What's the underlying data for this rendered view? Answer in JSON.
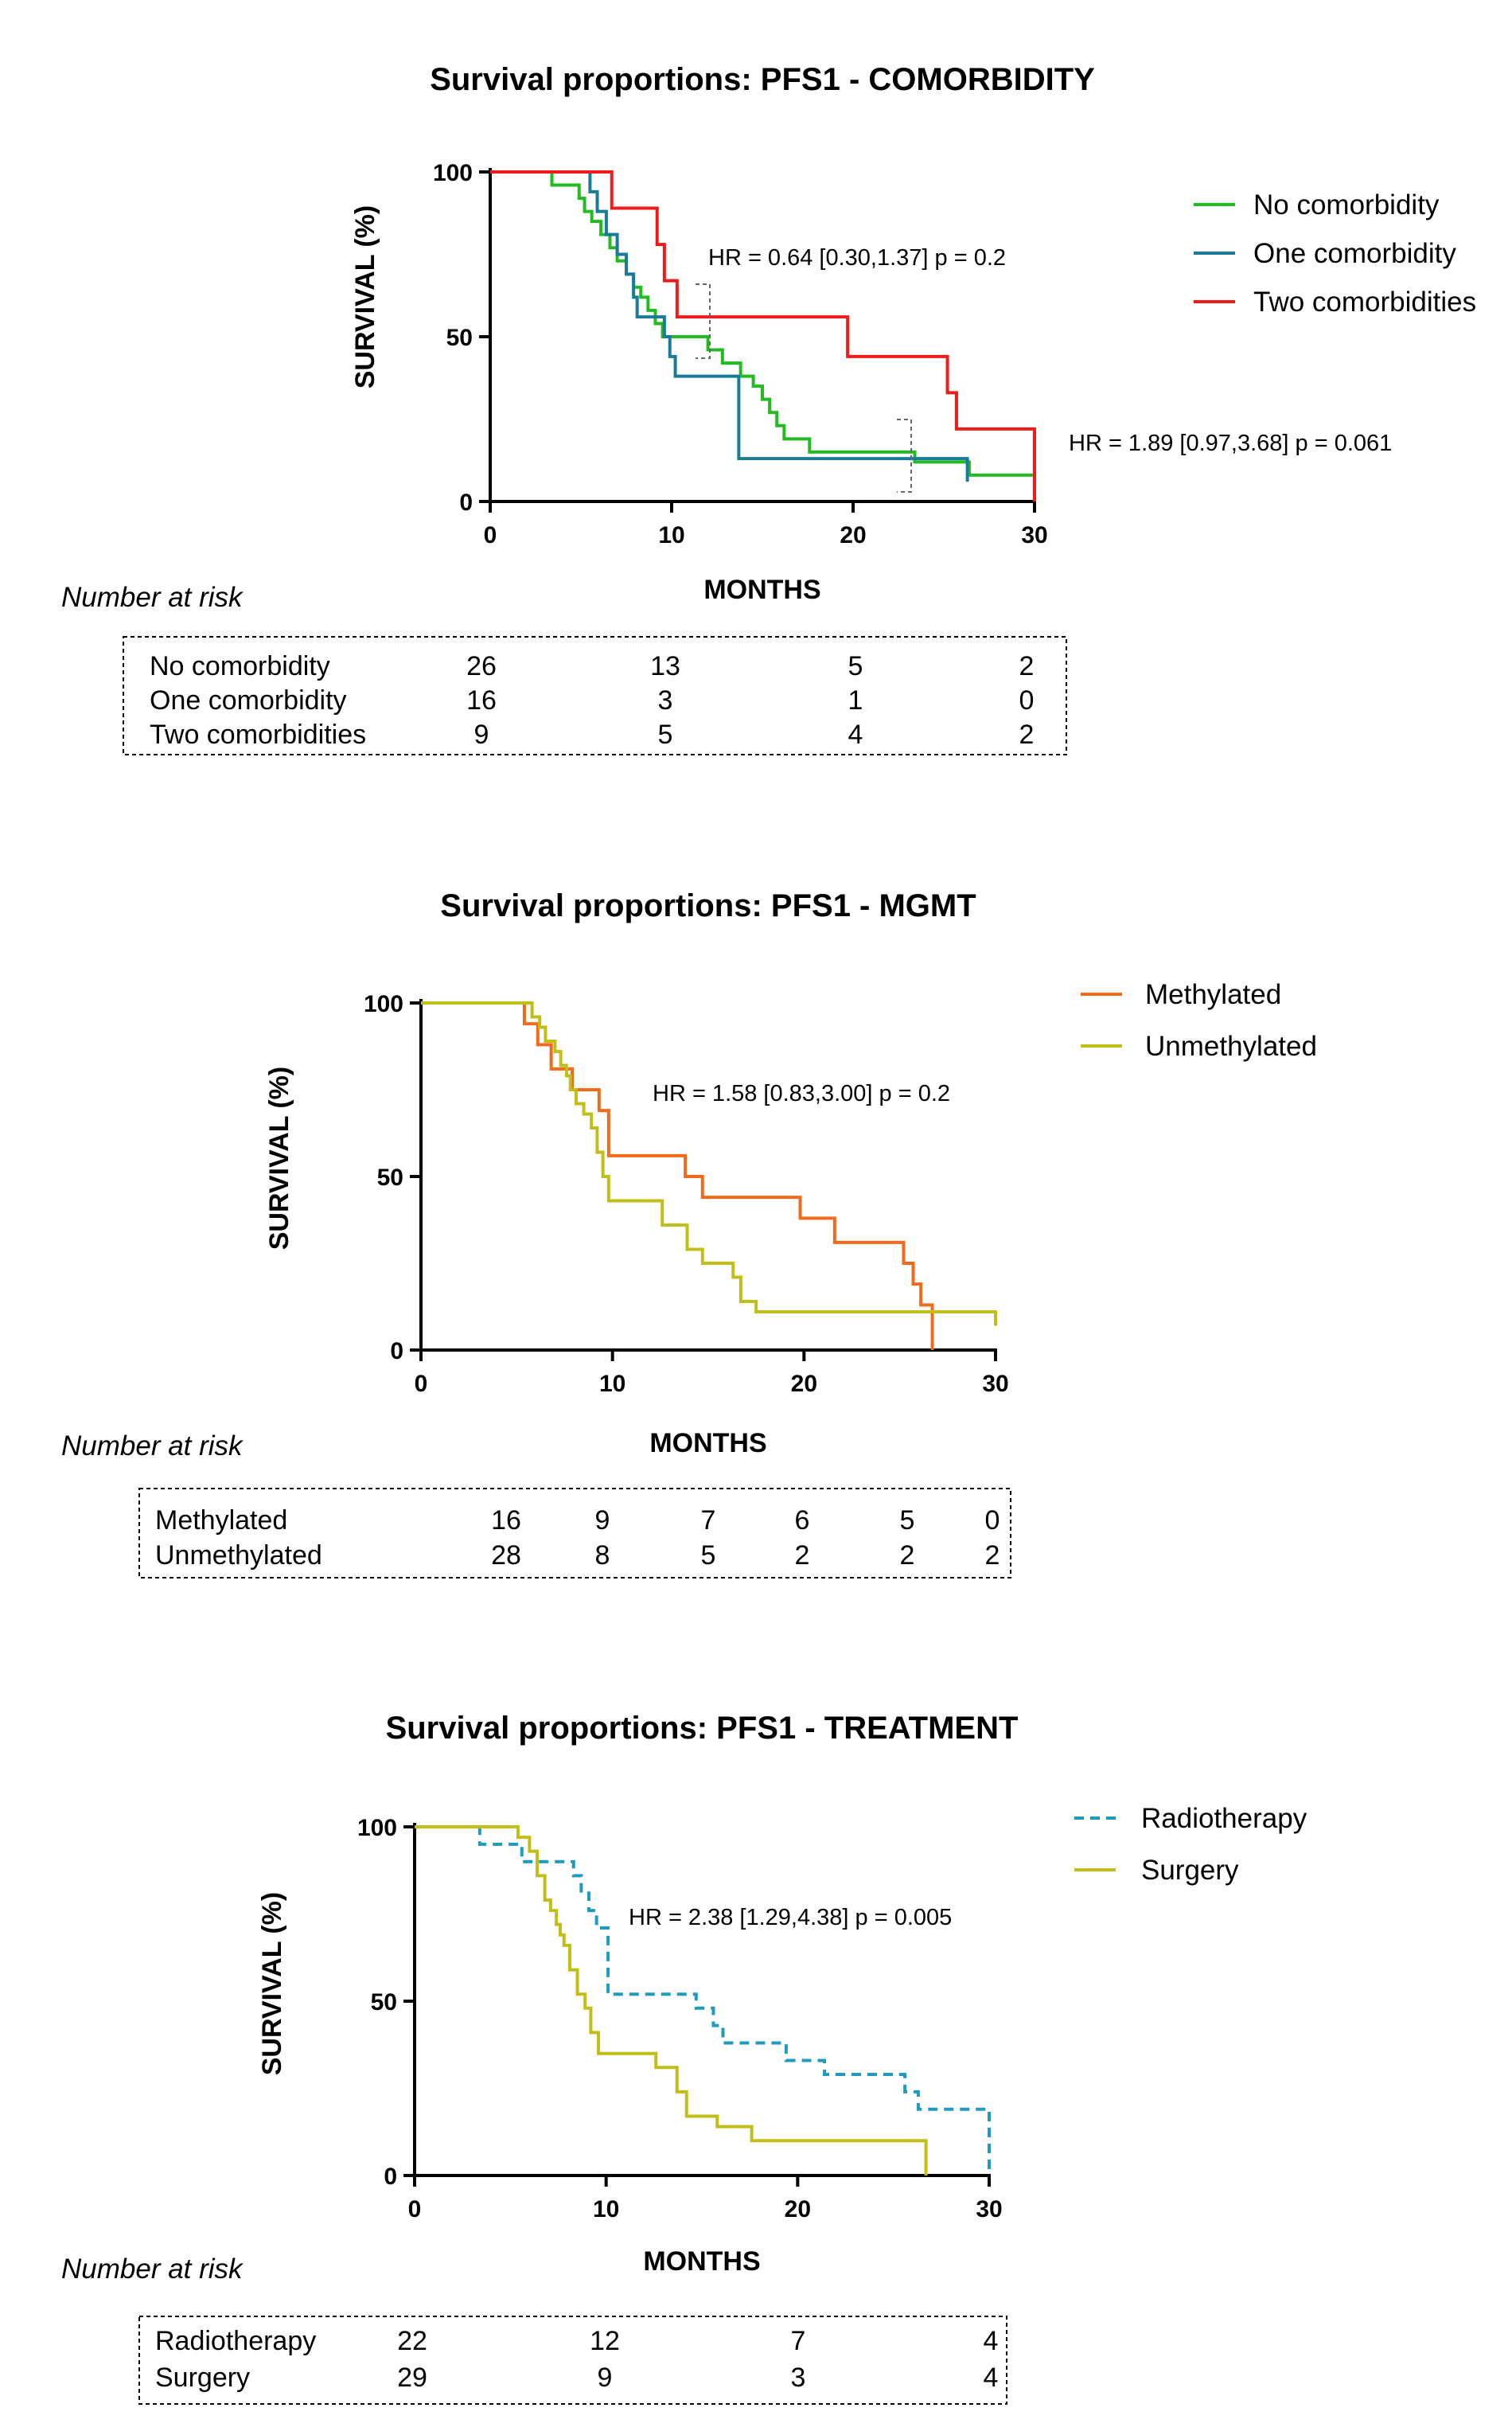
{
  "chart_data": [
    {
      "type": "line",
      "subtype": "kaplan-meier",
      "title": "Survival proportions: PFS1 - COMORBIDITY",
      "xlabel": "MONTHS",
      "ylabel": "SURVIVAL (%)",
      "xlim": [
        0,
        30
      ],
      "ylim": [
        0,
        100
      ],
      "xticks": [
        0,
        10,
        20,
        30
      ],
      "yticks": [
        0,
        50,
        100
      ],
      "legend_position": "top-right",
      "series": [
        {
          "name": "No comorbidity",
          "color": "#22bb22",
          "dash": false,
          "x": [
            0,
            3.4,
            4.9,
            5.2,
            5.6,
            6.1,
            6.6,
            7.0,
            7.5,
            7.9,
            8.3,
            8.7,
            9.1,
            9.5,
            12.0,
            12.8,
            13.8,
            14.5,
            15.0,
            15.4,
            15.8,
            16.2,
            17.6,
            19.8,
            23.4,
            26.4,
            30.0
          ],
          "y": [
            100,
            96,
            92,
            88,
            85,
            81,
            77,
            73,
            69,
            65,
            62,
            58,
            54,
            50,
            46,
            42,
            38,
            35,
            31,
            27,
            23,
            19,
            15,
            15,
            12,
            8,
            0
          ]
        },
        {
          "name": "One comorbidity",
          "color": "#1a7a99",
          "dash": false,
          "x": [
            0,
            5.5,
            5.9,
            6.4,
            7.0,
            7.5,
            7.9,
            8.1,
            9.6,
            9.9,
            10.2,
            13.7,
            26.3
          ],
          "y": [
            100,
            94,
            88,
            81,
            75,
            69,
            62,
            56,
            50,
            44,
            38,
            13,
            6
          ]
        },
        {
          "name": "Two comorbidities",
          "color": "#ee1c1c",
          "dash": false,
          "x": [
            0,
            6.7,
            9.2,
            9.6,
            10.3,
            19.7,
            25.2,
            25.7,
            30.0
          ],
          "y": [
            100,
            89,
            78,
            67,
            56,
            44,
            33,
            22,
            0
          ]
        }
      ],
      "annotations": [
        "HR = 0.64 [0.30,1.37] p = 0.2",
        "HR = 1.89 [0.97,3.68] p = 0.061"
      ],
      "risk_table": {
        "label": "Number at risk",
        "rows": [
          {
            "name": "No comorbidity",
            "counts": [
              "26",
              "13",
              "5",
              "2"
            ]
          },
          {
            "name": "One comorbidity",
            "counts": [
              "16",
              "3",
              "1",
              "0"
            ]
          },
          {
            "name": "Two comorbidities",
            "counts": [
              "9",
              "5",
              "4",
              "2"
            ]
          }
        ]
      }
    },
    {
      "type": "line",
      "subtype": "kaplan-meier",
      "title": "Survival proportions: PFS1 - MGMT",
      "xlabel": "MONTHS",
      "ylabel": "SURVIVAL (%)",
      "xlim": [
        0,
        30
      ],
      "ylim": [
        0,
        100
      ],
      "xticks": [
        0,
        10,
        20,
        30
      ],
      "yticks": [
        0,
        50,
        100
      ],
      "legend_position": "top-right",
      "series": [
        {
          "name": "Methylated",
          "color": "#f26b1d",
          "dash": false,
          "x": [
            0,
            5.4,
            6.1,
            6.8,
            7.9,
            9.3,
            9.8,
            13.8,
            14.7,
            19.8,
            21.6,
            25.2,
            25.7,
            26.1,
            26.7
          ],
          "y": [
            100,
            94,
            88,
            81,
            75,
            69,
            56,
            50,
            44,
            38,
            31,
            25,
            19,
            13,
            0
          ]
        },
        {
          "name": "Unmethylated",
          "color": "#c2be18",
          "dash": false,
          "x": [
            0,
            5.8,
            6.2,
            6.5,
            7.0,
            7.3,
            7.6,
            7.8,
            8.1,
            8.5,
            8.9,
            9.2,
            9.5,
            9.8,
            12.6,
            13.9,
            14.7,
            16.3,
            16.7,
            17.5,
            30.0
          ],
          "y": [
            100,
            96,
            93,
            89,
            86,
            82,
            79,
            75,
            71,
            68,
            64,
            57,
            50,
            43,
            36,
            29,
            25,
            21,
            14,
            11,
            7
          ]
        }
      ],
      "annotations": [
        "HR = 1.58 [0.83,3.00] p = 0.2"
      ],
      "risk_table": {
        "label": "Number at risk",
        "rows": [
          {
            "name": "Methylated",
            "counts": [
              "16",
              "9",
              "7",
              "6",
              "5",
              "0"
            ]
          },
          {
            "name": "Unmethylated",
            "counts": [
              "28",
              "8",
              "5",
              "2",
              "2",
              "2"
            ]
          }
        ]
      }
    },
    {
      "type": "line",
      "subtype": "kaplan-meier",
      "title": "Survival proportions: PFS1 - TREATMENT",
      "xlabel": "MONTHS",
      "ylabel": "SURVIVAL (%)",
      "xlim": [
        0,
        30
      ],
      "ylim": [
        0,
        100
      ],
      "xticks": [
        0,
        10,
        20,
        30
      ],
      "yticks": [
        0,
        50,
        100
      ],
      "legend_position": "top-right",
      "series": [
        {
          "name": "Radiotherapy",
          "color": "#1f9bbf",
          "dash": true,
          "x": [
            0,
            3.4,
            5.6,
            8.3,
            8.7,
            9.1,
            9.5,
            10.1,
            14.7,
            15.6,
            16.1,
            16.4,
            19.4,
            21.4,
            25.6,
            26.3,
            30.0
          ],
          "y": [
            100,
            95,
            90,
            86,
            81,
            76,
            71,
            52,
            48,
            43,
            38,
            38,
            33,
            29,
            24,
            19,
            0
          ]
        },
        {
          "name": "Surgery",
          "color": "#c2be18",
          "dash": false,
          "x": [
            0,
            5.4,
            6.0,
            6.4,
            6.8,
            7.1,
            7.4,
            7.6,
            7.8,
            8.1,
            8.5,
            8.9,
            9.2,
            9.6,
            12.6,
            13.7,
            14.2,
            15.8,
            17.6,
            26.7
          ],
          "y": [
            100,
            97,
            93,
            86,
            79,
            76,
            72,
            69,
            66,
            59,
            52,
            48,
            41,
            35,
            31,
            24,
            17,
            14,
            10,
            0
          ]
        }
      ],
      "annotations": [
        "HR = 2.38 [1.29,4.38] p = 0.005"
      ],
      "risk_table": {
        "label": "Number at risk",
        "rows": [
          {
            "name": "Radiotherapy",
            "counts": [
              "22",
              "12",
              "7",
              "4"
            ]
          },
          {
            "name": "Surgery",
            "counts": [
              "29",
              "9",
              "3",
              "4"
            ]
          }
        ]
      }
    }
  ]
}
